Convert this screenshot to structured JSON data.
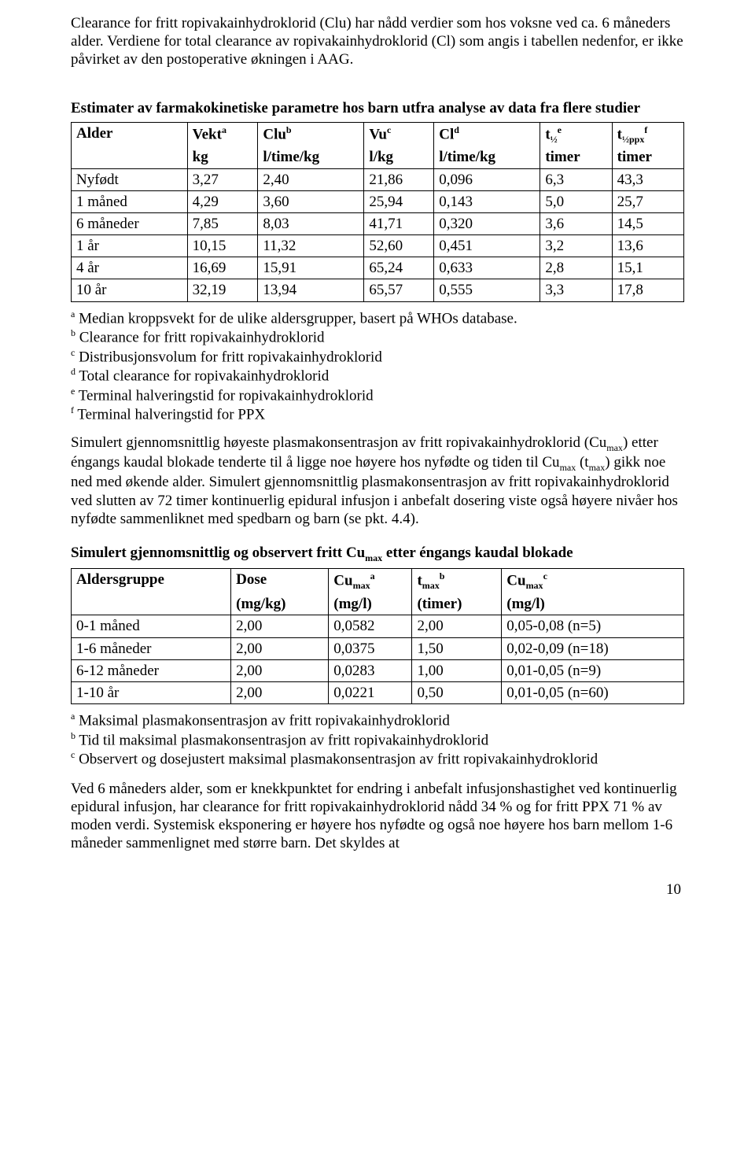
{
  "intro_paragraphs": [
    "Clearance for fritt ropivakainhydroklorid (Clu) har nådd verdier som hos voksne ved ca. 6 måneders alder. Verdiene for total clearance av ropivakainhydroklorid (Cl) som angis i tabellen nedenfor, er ikke påvirket av den postoperative økningen i AAG."
  ],
  "table1": {
    "title": "Estimater av farmakokinetiske parametre hos barn utfra analyse av data fra flere studier",
    "headers": {
      "h1": "Alder",
      "h2_main": "Vekt",
      "h2_sup": "a",
      "h3_main": "Clu",
      "h3_sup": "b",
      "h4_main": "Vu",
      "h4_sup": "c",
      "h5_main": "Cl",
      "h5_sup": "d",
      "h6_main": "t",
      "h6_sub": "½",
      "h6_sup": "e",
      "h7_main": "t",
      "h7_sub": "½ppx",
      "h7_sup": "f"
    },
    "units": {
      "u1": "",
      "u2": "kg",
      "u3": "l/time/kg",
      "u4": "l/kg",
      "u5": "l/time/kg",
      "u6": "timer",
      "u7": "timer"
    },
    "rows": [
      [
        "Nyfødt",
        "3,27",
        "2,40",
        "21,86",
        "0,096",
        "6,3",
        "43,3"
      ],
      [
        "1 måned",
        "4,29",
        "3,60",
        "25,94",
        "0,143",
        "5,0",
        "25,7"
      ],
      [
        "6 måneder",
        "7,85",
        "8,03",
        "41,71",
        "0,320",
        "3,6",
        "14,5"
      ],
      [
        "1 år",
        "10,15",
        "11,32",
        "52,60",
        "0,451",
        "3,2",
        "13,6"
      ],
      [
        "4 år",
        "16,69",
        "15,91",
        "65,24",
        "0,633",
        "2,8",
        "15,1"
      ],
      [
        "10 år",
        "32,19",
        "13,94",
        "65,57",
        "0,555",
        "3,3",
        "17,8"
      ]
    ],
    "footnotes": [
      {
        "sup": "a",
        "text": " Median kroppsvekt for de ulike aldersgrupper, basert på WHOs database."
      },
      {
        "sup": "b",
        "text": " Clearance for fritt ropivakainhydroklorid"
      },
      {
        "sup": "c",
        "text": " Distribusjonsvolum for fritt ropivakainhydroklorid"
      },
      {
        "sup": "d",
        "text": " Total clearance for ropivakainhydroklorid"
      },
      {
        "sup": "e",
        "text": " Terminal halveringstid for ropivakainhydroklorid"
      },
      {
        "sup": "f",
        "text": " Terminal halveringstid for PPX"
      }
    ]
  },
  "mid_paragraph": "Simulert gjennomsnittlig høyeste plasmakonsentrasjon av fritt ropivakainhydroklorid (Cumax) etter éngangs kaudal blokade tenderte til å ligge noe høyere hos nyfødte og tiden til Cumax (tmax) gikk noe ned med økende alder. Simulert gjennomsnittlig plasmakonsentrasjon av fritt ropivakainhydroklorid ved slutten av 72 timer kontinuerlig epidural infusjon i anbefalt dosering viste også høyere nivåer hos nyfødte sammenliknet med spedbarn og barn (se pkt. 4.4).",
  "mid_chunks": {
    "a": "Simulert gjennomsnittlig høyeste plasmakonsentrasjon av fritt ropivakainhydroklorid (Cu",
    "b": ") etter éngangs kaudal blokade tenderte til å ligge noe høyere hos nyfødte og tiden til Cu",
    "c": " (t",
    "d": ") gikk noe ned med økende alder. Simulert gjennomsnittlig plasmakonsentrasjon av fritt ropivakainhydroklorid ved slutten av 72 timer kontinuerlig epidural infusjon i anbefalt dosering viste også høyere nivåer hos nyfødte sammenliknet med spedbarn og barn (se pkt. 4.4).",
    "max": "max"
  },
  "table2": {
    "title_a": "Simulert gjennomsnittlig og observert fritt Cu",
    "title_b": " etter éngangs kaudal blokade",
    "title_max": "max",
    "headers": {
      "h1": "Aldersgruppe",
      "h2": "Dose",
      "h3_main": "Cu",
      "h3_sub": "max",
      "h3_sup": "a",
      "h4_main": "t",
      "h4_sub": "max",
      "h4_sup": "b",
      "h5_main": "Cu",
      "h5_sub": "max",
      "h5_sup": "c"
    },
    "units": {
      "u1": "",
      "u2": "(mg/kg)",
      "u3": "(mg/l)",
      "u4": "(timer)",
      "u5": "(mg/l)"
    },
    "rows": [
      [
        "0-1 måned",
        "2,00",
        "0,0582",
        "2,00",
        "0,05-0,08 (n=5)"
      ],
      [
        "1-6 måneder",
        "2,00",
        "0,0375",
        "1,50",
        "0,02-0,09 (n=18)"
      ],
      [
        "6-12 måneder",
        "2,00",
        "0,0283",
        "1,00",
        "0,01-0,05 (n=9)"
      ],
      [
        "1-10 år",
        "2,00",
        "0,0221",
        "0,50",
        "0,01-0,05 (n=60)"
      ]
    ],
    "footnotes": [
      {
        "sup": "a",
        "text": " Maksimal plasmakonsentrasjon av fritt ropivakainhydroklorid"
      },
      {
        "sup": "b",
        "text": " Tid til maksimal plasmakonsentrasjon av fritt ropivakainhydroklorid"
      },
      {
        "sup": "c",
        "text": " Observert og dosejustert maksimal plasmakonsentrasjon av fritt ropivakainhydroklorid"
      }
    ]
  },
  "closing_paragraph": "Ved 6 måneders alder, som er knekkpunktet for endring i anbefalt infusjonshastighet ved kontinuerlig epidural infusjon, har clearance for fritt ropivakainhydroklorid nådd 34 % og for fritt PPX 71 % av moden verdi. Systemisk eksponering er høyere hos nyfødte og også noe høyere hos barn mellom 1-6 måneder sammenlignet med større barn. Det skyldes at",
  "page_number": "10"
}
